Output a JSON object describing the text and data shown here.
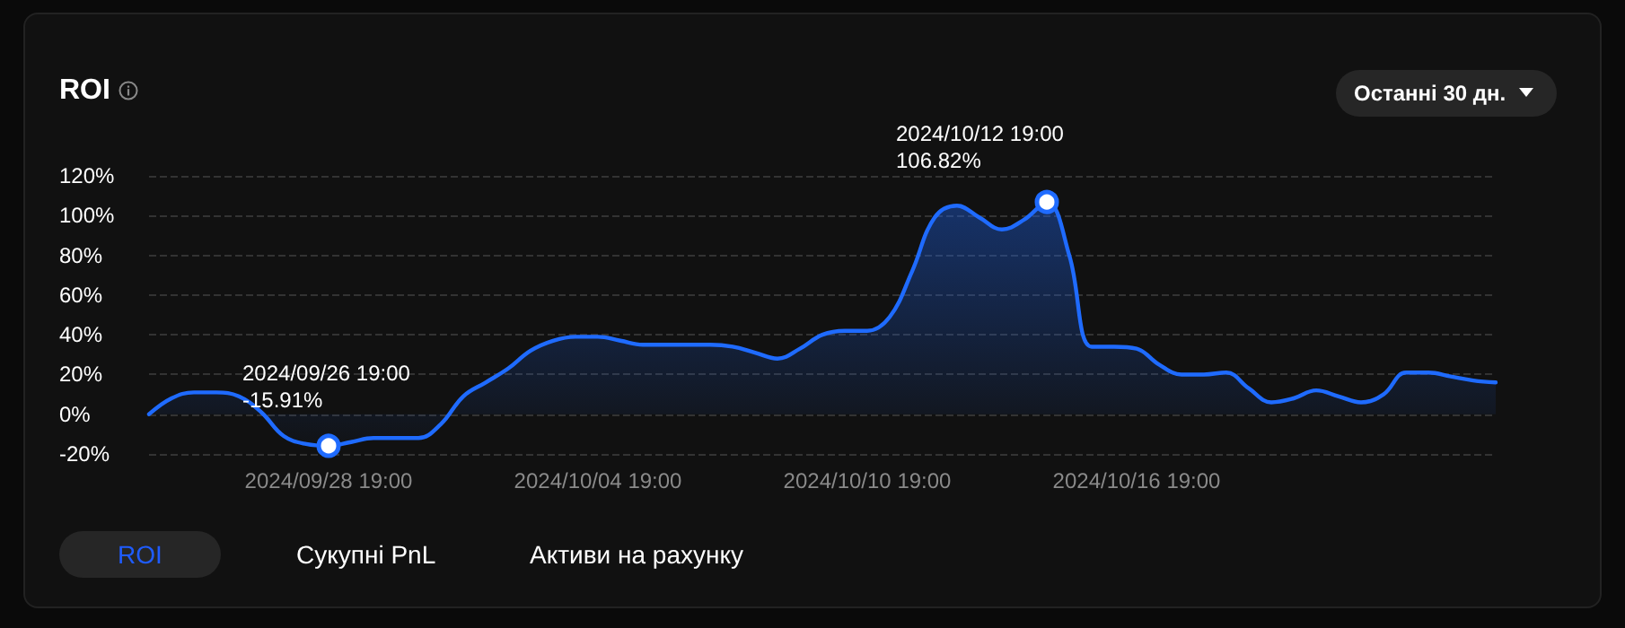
{
  "chart_data": {
    "type": "area",
    "title": "ROI",
    "categories": [
      null,
      null,
      null,
      null,
      null,
      null,
      null,
      null,
      "2024/09/28 19:00",
      null,
      null,
      null,
      null,
      null,
      null,
      null,
      null,
      null,
      null,
      null,
      "2024/10/04 19:00",
      null,
      null,
      null,
      null,
      null,
      null,
      null,
      null,
      null,
      null,
      null,
      "2024/10/10 19:00",
      null,
      null,
      null,
      null,
      null,
      null,
      null,
      null,
      null,
      null,
      null,
      "2024/10/16 19:00",
      null,
      null,
      null,
      null,
      null,
      null,
      null,
      null,
      null,
      null,
      null,
      null,
      null,
      null,
      null,
      null
    ],
    "series": [
      {
        "color": "#1f6bff",
        "values": [
          0,
          8,
          11,
          11,
          9,
          1,
          -11,
          -15,
          -15.91,
          -14,
          -12,
          -12,
          -12,
          -5,
          9,
          16,
          23,
          32,
          37,
          39,
          39,
          37,
          35,
          35,
          35,
          35,
          34,
          31,
          28,
          33,
          40,
          42,
          42,
          49,
          72,
          99,
          105,
          99,
          93,
          98,
          106.82,
          80,
          34,
          34,
          33,
          25,
          20,
          20,
          21,
          13,
          6,
          8,
          12,
          9,
          6,
          10,
          21,
          21,
          19,
          17,
          16
        ]
      }
    ],
    "ylim": [
      -20,
      120
    ],
    "yticks": [
      {
        "value": -20,
        "label": "-20%"
      },
      {
        "value": 0,
        "label": "0%"
      },
      {
        "value": 20,
        "label": "20%"
      },
      {
        "value": 40,
        "label": "40%"
      },
      {
        "value": 60,
        "label": "60%"
      },
      {
        "value": 80,
        "label": "80%"
      },
      {
        "value": 100,
        "label": "100%"
      },
      {
        "value": 120,
        "label": "120%"
      }
    ],
    "grid": "y",
    "marker": "none",
    "line_style": "solid",
    "annotations": [
      "2024/09/26 19:00\n-15.91%",
      "2024/10/12 19:00\n106.82%",
      "Останні 30 дн.",
      "ROI",
      "Сукупні PnL",
      "Активи на рахунку"
    ]
  }
}
